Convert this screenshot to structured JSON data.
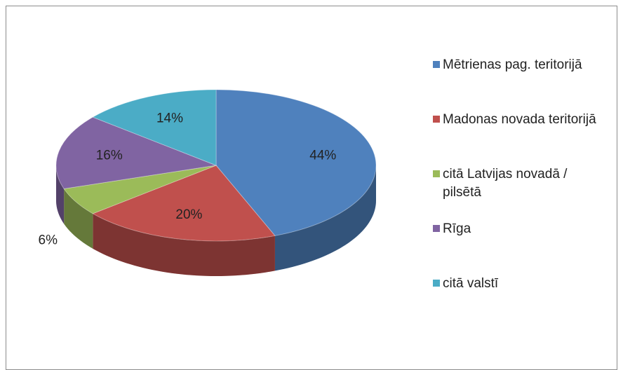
{
  "chart_data": {
    "type": "pie",
    "categories": [
      "Mētrienas pag. teritorijā",
      "Madonas novada teritorijā",
      "citā Latvijas novadā / pilsētā",
      "Rīga",
      "citā valstī"
    ],
    "values": [
      44,
      20,
      6,
      16,
      14
    ],
    "value_labels": [
      "44%",
      "20%",
      "6%",
      "16%",
      "14%"
    ],
    "colors": [
      "#4f81bd",
      "#c0504d",
      "#9bbb59",
      "#8064a2",
      "#4bacc6"
    ],
    "legend": "right"
  }
}
